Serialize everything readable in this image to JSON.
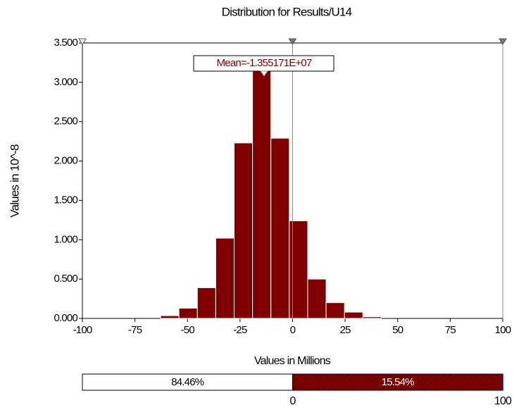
{
  "chart_data": {
    "type": "histogram",
    "title": "Distribution for Results/U14",
    "x_label": "Values in Millions",
    "y_label": "Values in 10^-8",
    "bins": [
      -62.8,
      -54.05,
      -45.3,
      -36.55,
      -27.8,
      -19.05,
      -10.3,
      -1.55,
      7.2,
      15.95,
      24.7,
      33.45,
      42.2
    ],
    "values": [
      0.035,
      0.13,
      0.39,
      1.02,
      2.23,
      3.15,
      2.29,
      1.24,
      0.5,
      0.2,
      0.08,
      0.02
    ],
    "color": "#800000",
    "xlim": [
      -100,
      100
    ],
    "xticks": [
      -100,
      -75,
      -50,
      -25,
      0,
      25,
      50,
      75,
      100
    ],
    "ylim": [
      0,
      3.5
    ],
    "yticks": [
      {
        "value": 0,
        "label": "0.000"
      },
      {
        "value": 0.5,
        "label": "0.500"
      },
      {
        "value": 1,
        "label": "1.000"
      },
      {
        "value": 1.5,
        "label": "1.500"
      },
      {
        "value": 2,
        "label": "2.000"
      },
      {
        "value": 2.5,
        "label": "2.500"
      },
      {
        "value": 3,
        "label": "3.000"
      },
      {
        "value": 3.5,
        "label": "3.500"
      }
    ],
    "mean": {
      "value": -13.55171,
      "label": "Mean=-1.355171E+07"
    },
    "delimiters": [
      0,
      100
    ],
    "percent_bar": {
      "values": [
        84.46,
        15.54
      ],
      "value_labels": [
        "84.46%",
        "15.54%"
      ]
    }
  }
}
